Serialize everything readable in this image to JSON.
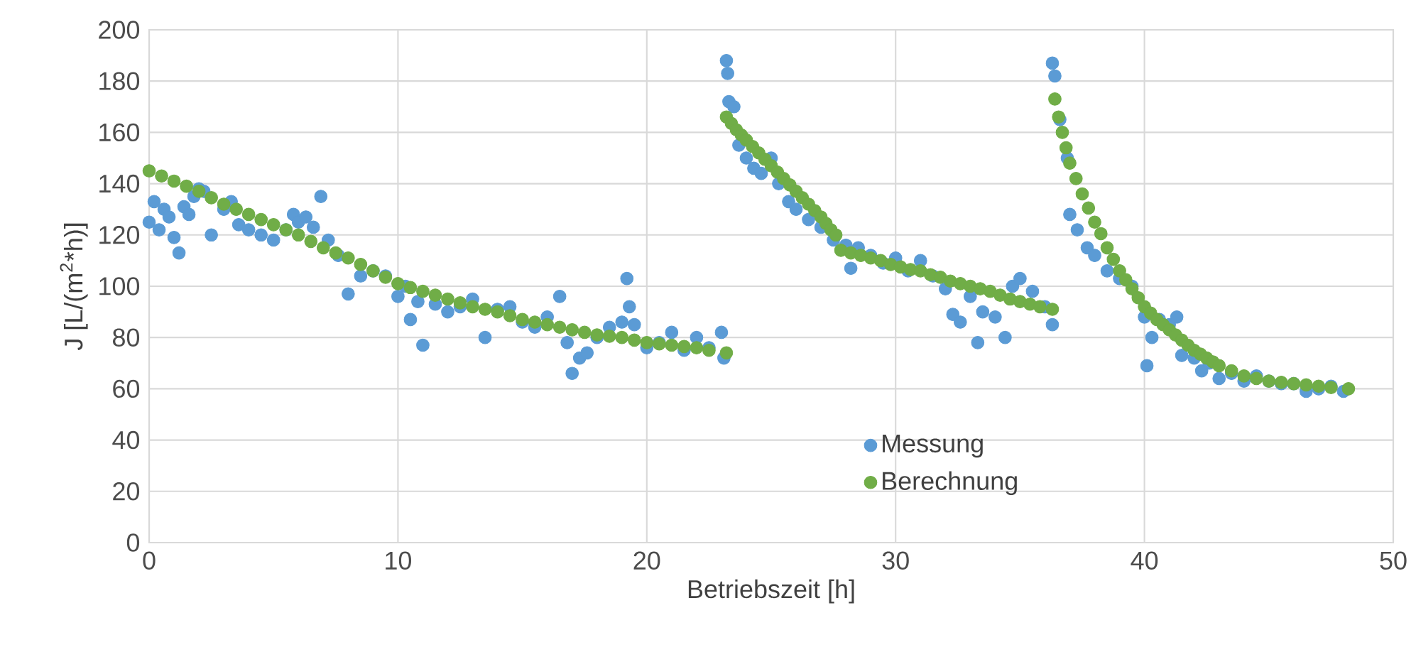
{
  "chart_data": {
    "type": "scatter",
    "xlabel": "Betriebszeit [h]",
    "ylabel": "J [L/(m$^{2}$*h)]",
    "xlim": [
      0,
      50
    ],
    "xticks": [
      0,
      10,
      20,
      30,
      40,
      50
    ],
    "ylim": [
      0,
      200
    ],
    "yticks": [
      0,
      20,
      40,
      60,
      80,
      100,
      120,
      140,
      160,
      180,
      200
    ],
    "grid": true,
    "legend": "bottom",
    "marker": "circle",
    "series": [
      {
        "name": "Messung",
        "color": "#5b9bd5",
        "x": [
          0,
          0.2,
          0.4,
          0.6,
          0.8,
          1,
          1.2,
          1.4,
          1.6,
          1.8,
          2,
          2.2,
          2.5,
          3,
          3.3,
          3.6,
          4,
          4.5,
          5,
          5.5,
          5.8,
          6,
          6.3,
          6.6,
          6.9,
          7.2,
          7.6,
          8,
          8.5,
          9,
          9.5,
          10,
          10.3,
          10.5,
          10.8,
          11,
          11.5,
          12,
          12.5,
          13,
          13.5,
          14,
          14.5,
          15,
          15.5,
          16,
          16.5,
          16.8,
          17,
          17.3,
          17.6,
          18,
          18.5,
          19,
          19.2,
          19.3,
          19.5,
          20,
          20.5,
          21,
          21.5,
          22,
          22.5,
          23,
          23.1,
          23.2,
          23.25,
          23.3,
          23.5,
          23.7,
          24,
          24.3,
          24.6,
          25,
          25.3,
          25.7,
          26,
          26.5,
          27,
          27.5,
          28,
          28.2,
          28.5,
          29,
          29.5,
          30,
          30.5,
          31,
          31.5,
          32,
          32.3,
          32.6,
          33,
          33.3,
          33.5,
          34,
          34.4,
          34.7,
          35,
          35.5,
          36,
          36.3,
          36.3,
          36.4,
          36.6,
          36.9,
          37,
          37.3,
          37.7,
          38,
          38.5,
          39,
          39.5,
          40,
          40.1,
          40.3,
          40.6,
          41,
          41.3,
          41.5,
          42,
          42.3,
          42.6,
          43,
          43.5,
          44,
          44.5,
          45,
          45.5,
          46,
          46.5,
          47,
          47.5,
          48
        ],
        "values": [
          125,
          133,
          122,
          130,
          127,
          119,
          113,
          131,
          128,
          135,
          138,
          137,
          120,
          130,
          133,
          124,
          122,
          120,
          118,
          122,
          128,
          125,
          127,
          123,
          135,
          118,
          112,
          97,
          104,
          106,
          104,
          96,
          100,
          87,
          94,
          77,
          93,
          90,
          92,
          95,
          80,
          91,
          92,
          86,
          84,
          88,
          96,
          78,
          66,
          72,
          74,
          80,
          84,
          86,
          103,
          92,
          85,
          76,
          78,
          82,
          75,
          80,
          76,
          82,
          72,
          188,
          183,
          172,
          170,
          155,
          150,
          146,
          144,
          150,
          140,
          133,
          130,
          126,
          123,
          118,
          116,
          107,
          115,
          112,
          109,
          111,
          106,
          110,
          104,
          99,
          89,
          86,
          96,
          78,
          90,
          88,
          80,
          100,
          103,
          98,
          92,
          85,
          187,
          182,
          165,
          150,
          128,
          122,
          115,
          112,
          106,
          103,
          100,
          88,
          69,
          80,
          87,
          85,
          88,
          73,
          72,
          67,
          70,
          64,
          66,
          63,
          65,
          63,
          62,
          62,
          59,
          60,
          61,
          59
        ]
      },
      {
        "name": "Berechnung",
        "color": "#70ad47",
        "x": [
          0,
          0.5,
          1,
          1.5,
          2,
          2.5,
          3,
          3.5,
          4,
          4.5,
          5,
          5.5,
          6,
          6.5,
          7,
          7.5,
          8,
          8.5,
          9,
          9.5,
          10,
          10.5,
          11,
          11.5,
          12,
          12.5,
          13,
          13.5,
          14,
          14.5,
          15,
          15.5,
          16,
          16.5,
          17,
          17.5,
          18,
          18.5,
          19,
          19.5,
          20,
          20.5,
          21,
          21.5,
          22,
          22.5,
          23.2,
          23.2,
          23.4,
          23.6,
          23.8,
          24,
          24.25,
          24.5,
          24.75,
          25,
          25.25,
          25.5,
          25.75,
          26,
          26.25,
          26.5,
          26.75,
          27,
          27.2,
          27.4,
          27.6,
          27.8,
          28.2,
          28.6,
          29,
          29.4,
          29.8,
          30.2,
          30.6,
          31,
          31.4,
          31.8,
          32.2,
          32.6,
          33,
          33.4,
          33.8,
          34.2,
          34.6,
          35,
          35.4,
          35.8,
          36.3,
          36.4,
          36.55,
          36.7,
          36.85,
          37,
          37.25,
          37.5,
          37.75,
          38,
          38.25,
          38.5,
          38.75,
          39,
          39.25,
          39.5,
          39.75,
          40,
          40.25,
          40.5,
          40.75,
          41,
          41.25,
          41.5,
          41.75,
          42,
          42.25,
          42.5,
          42.75,
          43,
          43.5,
          44,
          44.5,
          45,
          45.5,
          46,
          46.5,
          47,
          47.5,
          48.2
        ],
        "values": [
          145,
          143,
          141,
          139,
          137,
          134.5,
          132,
          130,
          128,
          126,
          124,
          122,
          120,
          117.5,
          115,
          113,
          111,
          108.5,
          106,
          103.5,
          101,
          99.5,
          98,
          96.5,
          95,
          93.5,
          92,
          91,
          90,
          88.5,
          87,
          86,
          85,
          84,
          83,
          82,
          81,
          80.5,
          80,
          79,
          78,
          77.5,
          77,
          76.5,
          76,
          75,
          74,
          166,
          163.5,
          161,
          159,
          157,
          154.5,
          152,
          149.5,
          147,
          144.5,
          142,
          139.5,
          137,
          134.5,
          132,
          129.5,
          127,
          124.5,
          122,
          120,
          114,
          113,
          112,
          111,
          110,
          108.5,
          107.5,
          106.5,
          106,
          104.5,
          103.5,
          102,
          101,
          100,
          99,
          98,
          96.5,
          95,
          94,
          93,
          92,
          91,
          173,
          166,
          160,
          154,
          148,
          142,
          136,
          130.5,
          125,
          120.5,
          115,
          110.5,
          106,
          102.5,
          99,
          95.5,
          92,
          89.5,
          87,
          85,
          83,
          81,
          79,
          77,
          75,
          73.5,
          72,
          70.5,
          69,
          67,
          65,
          64,
          63,
          62.5,
          62,
          61.5,
          61,
          60.5,
          60
        ]
      }
    ]
  }
}
